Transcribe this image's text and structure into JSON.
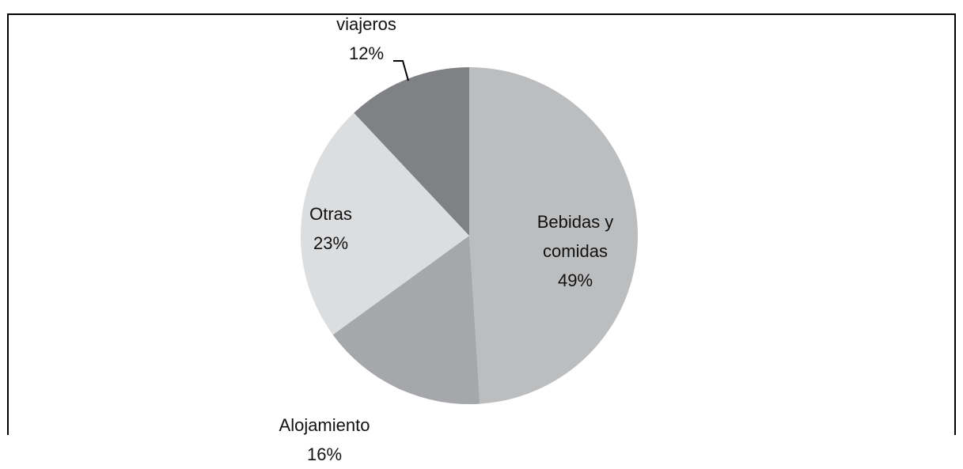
{
  "chart_data": {
    "type": "pie",
    "categories": [
      "Bebidas y comidas",
      "Alojamiento",
      "Otras",
      "viajeros"
    ],
    "values": [
      49,
      16,
      23,
      12
    ],
    "value_labels": [
      "49%",
      "16%",
      "23%",
      "12%"
    ],
    "colors": [
      "#bcbdbf",
      "#a6a7aa",
      "#dcdddf",
      "#808184"
    ]
  }
}
